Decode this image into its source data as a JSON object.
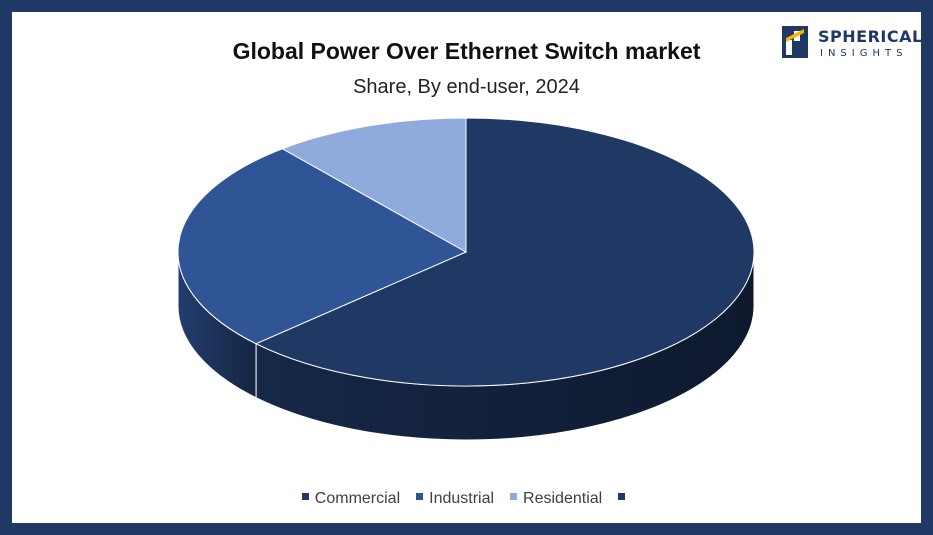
{
  "brand": {
    "name": "SPHERICAL",
    "tagline": "INSIGHTS"
  },
  "chart_data": {
    "type": "pie",
    "title": "Global Power Over Ethernet Switch market",
    "subtitle": "Share, By end-user, 2024",
    "categories": [
      "Commercial",
      "Industrial",
      "Residential",
      ""
    ],
    "values": [
      63,
      26,
      11,
      0
    ],
    "colors": [
      "#1f3864",
      "#2f5597",
      "#8faadc",
      "#1f3864"
    ],
    "legend": "bottom"
  }
}
